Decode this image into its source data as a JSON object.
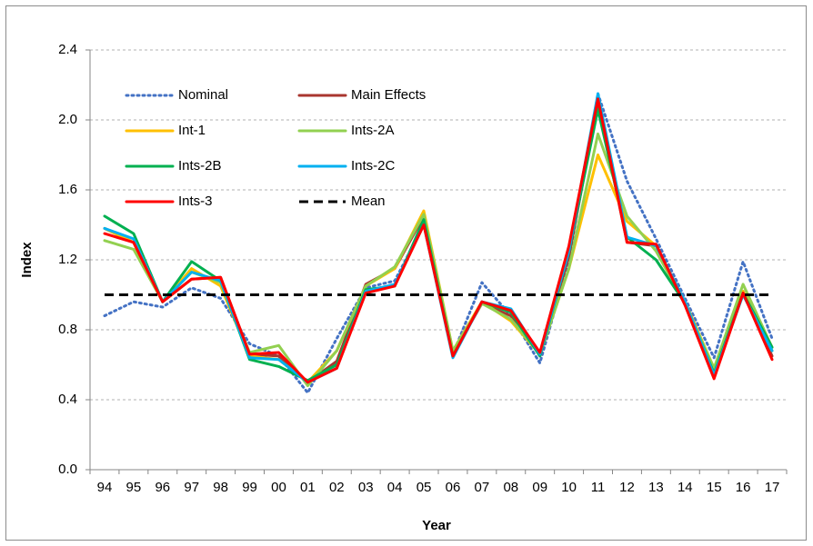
{
  "chart_data": {
    "type": "line",
    "x_label": "Year",
    "y_label": "Index",
    "categories": [
      "94",
      "95",
      "96",
      "97",
      "98",
      "99",
      "00",
      "01",
      "02",
      "03",
      "04",
      "05",
      "06",
      "07",
      "08",
      "09",
      "10",
      "11",
      "12",
      "13",
      "14",
      "15",
      "16",
      "17"
    ],
    "ylim": [
      0,
      2.4
    ],
    "yticks": [
      {
        "value": 0,
        "label": "0.0"
      },
      0.4,
      0.8,
      1.2,
      1.6,
      {
        "value": 2,
        "label": "2.0"
      },
      2.4
    ],
    "grid": true,
    "legend": "upper-left",
    "series": [
      {
        "name": "Nominal",
        "color": "#4472c4",
        "style": "dotted",
        "values": [
          0.88,
          0.96,
          0.93,
          1.04,
          0.98,
          0.72,
          0.65,
          0.44,
          0.75,
          1.04,
          1.08,
          1.4,
          0.66,
          1.07,
          0.88,
          0.61,
          1.2,
          2.15,
          1.65,
          1.32,
          0.98,
          0.64,
          1.19,
          0.75
        ]
      },
      {
        "name": "Main Effects",
        "color": "#a9362f",
        "style": "solid",
        "values": [
          1.38,
          1.3,
          0.96,
          1.09,
          1.1,
          0.66,
          0.65,
          0.5,
          0.62,
          1.06,
          1.15,
          1.45,
          0.66,
          0.95,
          0.88,
          0.66,
          1.22,
          2.1,
          1.3,
          1.28,
          0.95,
          0.55,
          1.02,
          0.65
        ]
      },
      {
        "name": "Int-1",
        "color": "#ffc000",
        "style": "solid",
        "values": [
          1.38,
          1.3,
          0.96,
          1.15,
          1.05,
          0.65,
          0.63,
          0.5,
          0.68,
          1.05,
          1.15,
          1.48,
          0.68,
          0.96,
          0.85,
          0.66,
          1.15,
          1.8,
          1.42,
          1.28,
          0.96,
          0.58,
          1.02,
          0.68
        ]
      },
      {
        "name": "Ints-2A",
        "color": "#92d050",
        "style": "solid",
        "values": [
          1.31,
          1.26,
          0.96,
          1.13,
          1.07,
          0.67,
          0.71,
          0.48,
          0.68,
          1.05,
          1.16,
          1.46,
          0.68,
          0.95,
          0.86,
          0.66,
          1.15,
          1.92,
          1.45,
          1.25,
          0.95,
          0.58,
          1.06,
          0.7
        ]
      },
      {
        "name": "Ints-2B",
        "color": "#00b050",
        "style": "solid",
        "values": [
          1.45,
          1.35,
          0.96,
          1.19,
          1.08,
          0.63,
          0.59,
          0.51,
          0.6,
          1.03,
          1.05,
          1.43,
          0.65,
          0.96,
          0.9,
          0.65,
          1.25,
          2.06,
          1.33,
          1.2,
          0.95,
          0.55,
          1.01,
          0.7
        ]
      },
      {
        "name": "Ints-2C",
        "color": "#00b0f0",
        "style": "solid",
        "values": [
          1.38,
          1.32,
          0.96,
          1.13,
          1.08,
          0.64,
          0.63,
          0.5,
          0.58,
          1.02,
          1.06,
          1.4,
          0.64,
          0.96,
          0.92,
          0.66,
          1.25,
          2.15,
          1.33,
          1.28,
          0.96,
          0.54,
          1.0,
          0.68
        ]
      },
      {
        "name": "Ints-3",
        "color": "#ff0000",
        "style": "solid",
        "values": [
          1.35,
          1.3,
          0.96,
          1.09,
          1.1,
          0.66,
          0.67,
          0.5,
          0.58,
          1.01,
          1.05,
          1.4,
          0.65,
          0.96,
          0.91,
          0.67,
          1.28,
          2.12,
          1.3,
          1.29,
          0.94,
          0.52,
          1.01,
          0.63
        ]
      },
      {
        "name": "Mean",
        "color": "#000000",
        "style": "dashed",
        "values": [
          1,
          1,
          1,
          1,
          1,
          1,
          1,
          1,
          1,
          1,
          1,
          1,
          1,
          1,
          1,
          1,
          1,
          1,
          1,
          1,
          1,
          1,
          1,
          1
        ]
      }
    ]
  }
}
